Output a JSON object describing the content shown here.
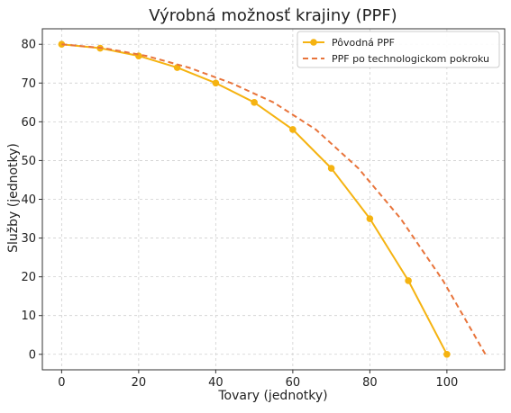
{
  "chart_data": {
    "type": "line",
    "title": "Výrobná možnosť krajiny (PPF)",
    "xlabel": "Tovary (jednotky)",
    "ylabel": "Služby (jednotky)",
    "xlim": [
      -5,
      115
    ],
    "ylim": [
      -4,
      84
    ],
    "xticks": [
      0,
      20,
      40,
      60,
      80,
      100
    ],
    "yticks": [
      0,
      10,
      20,
      30,
      40,
      50,
      60,
      70,
      80
    ],
    "grid": true,
    "legend_position": "top-right",
    "series": [
      {
        "name": "Pôvodná PPF",
        "color": "#f5b311",
        "style": "solid",
        "markers": true,
        "x": [
          0,
          10,
          20,
          30,
          40,
          50,
          60,
          70,
          80,
          90,
          100
        ],
        "y": [
          80,
          79,
          77,
          74,
          70,
          65,
          58,
          48,
          35,
          19,
          0
        ]
      },
      {
        "name": "PPF po technologickom pokroku",
        "color": "#e8743b",
        "style": "dashed",
        "markers": false,
        "x": [
          0,
          11,
          22,
          33,
          44,
          55,
          66,
          77,
          88,
          99,
          110
        ],
        "y": [
          80,
          79,
          77,
          74,
          70,
          65,
          58,
          48,
          35,
          19,
          0
        ]
      }
    ]
  }
}
